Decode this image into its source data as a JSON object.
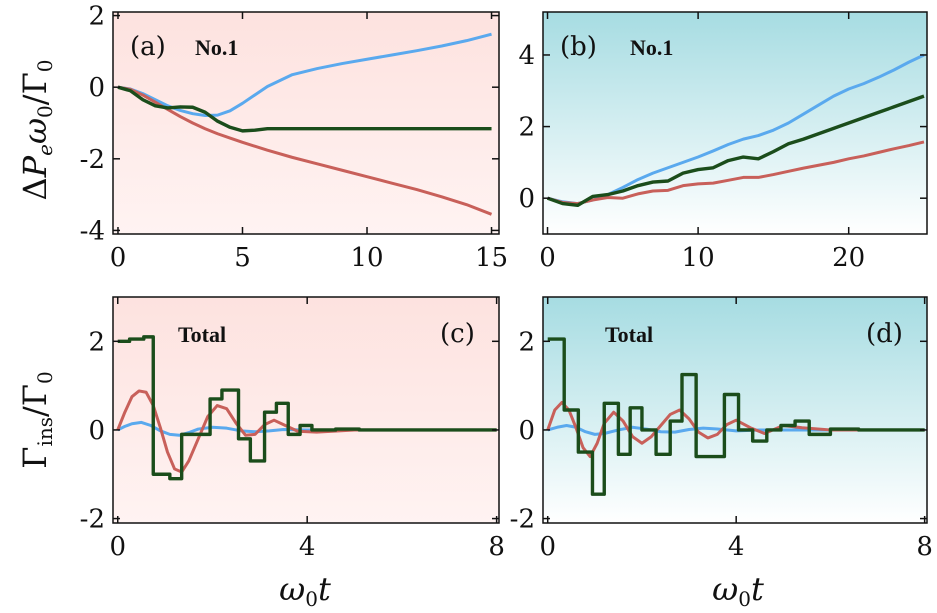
{
  "colors": {
    "blue": "#5aa9ee",
    "red": "#c8605a",
    "green": "#1b4d1b",
    "pink_bg": "#fde8e6",
    "cyan_top": "#a6dce2",
    "cyan_bottom": "#ffffff"
  },
  "ylabels": {
    "top": [
      "Δ",
      "P",
      "e",
      "ω",
      "0",
      "/Γ",
      "0"
    ],
    "bottom": [
      "Γ",
      "ins",
      "/Γ",
      "0"
    ]
  },
  "xlabel": [
    "ω",
    "0",
    "t"
  ],
  "chart_data": [
    {
      "type": "line",
      "panel_label": "(a)",
      "note": "No.1",
      "xlim": [
        -0.2,
        15.3
      ],
      "ylim": [
        -4.1,
        2.1
      ],
      "xticks": [
        "0",
        "5",
        "10",
        "15"
      ],
      "xtick_values": [
        0,
        5,
        10,
        15
      ],
      "yticks": [
        "-4",
        "-2",
        "0",
        "2"
      ],
      "ytick_values": [
        -4,
        -2,
        0,
        2
      ],
      "background": "pink",
      "series": [
        {
          "color": "blue",
          "x": [
            0,
            0.5,
            1,
            1.5,
            2,
            2.5,
            3,
            3.5,
            4,
            4.5,
            5,
            6,
            7,
            8,
            9,
            10,
            11,
            12,
            13,
            14,
            15
          ],
          "y": [
            0,
            -0.05,
            -0.18,
            -0.35,
            -0.52,
            -0.65,
            -0.74,
            -0.79,
            -0.78,
            -0.66,
            -0.45,
            0.02,
            0.35,
            0.52,
            0.66,
            0.78,
            0.9,
            1.02,
            1.15,
            1.3,
            1.48
          ]
        },
        {
          "color": "red",
          "x": [
            0,
            0.5,
            1,
            1.5,
            2,
            2.5,
            3,
            3.5,
            4,
            4.5,
            5,
            6,
            7,
            8,
            9,
            10,
            11,
            12,
            13,
            14,
            15
          ],
          "y": [
            0,
            -0.06,
            -0.22,
            -0.42,
            -0.62,
            -0.82,
            -1.0,
            -1.16,
            -1.3,
            -1.42,
            -1.54,
            -1.76,
            -1.96,
            -2.14,
            -2.32,
            -2.5,
            -2.68,
            -2.86,
            -3.06,
            -3.28,
            -3.55
          ]
        },
        {
          "color": "green",
          "x": [
            0,
            0.5,
            1,
            1.5,
            2,
            2.5,
            3,
            3.5,
            4,
            4.5,
            5,
            5.5,
            6,
            7,
            8,
            9,
            10,
            11,
            12,
            13,
            14,
            15
          ],
          "y": [
            0,
            -0.1,
            -0.35,
            -0.52,
            -0.58,
            -0.55,
            -0.56,
            -0.7,
            -0.95,
            -1.12,
            -1.22,
            -1.2,
            -1.16,
            -1.16,
            -1.16,
            -1.16,
            -1.16,
            -1.16,
            -1.16,
            -1.16,
            -1.16,
            -1.16
          ]
        }
      ]
    },
    {
      "type": "line",
      "panel_label": "(b)",
      "note": "No.1",
      "xlim": [
        -0.3,
        25.2
      ],
      "ylim": [
        -1.0,
        5.2
      ],
      "xticks": [
        "0",
        "10",
        "20"
      ],
      "xtick_values": [
        0,
        10,
        20
      ],
      "yticks": [
        "0",
        "2",
        "4"
      ],
      "ytick_values": [
        0,
        2,
        4
      ],
      "background": "cyan",
      "series": [
        {
          "color": "blue",
          "x": [
            0,
            1,
            2,
            3,
            4,
            5,
            6,
            7,
            8,
            9,
            10,
            11,
            12,
            13,
            14,
            15,
            16,
            17,
            18,
            19,
            20,
            21,
            22,
            23,
            24,
            25
          ],
          "y": [
            0,
            -0.1,
            -0.15,
            -0.05,
            0.1,
            0.3,
            0.52,
            0.7,
            0.85,
            1.0,
            1.15,
            1.32,
            1.5,
            1.65,
            1.75,
            1.9,
            2.1,
            2.35,
            2.6,
            2.85,
            3.05,
            3.2,
            3.38,
            3.58,
            3.8,
            4.0
          ]
        },
        {
          "color": "red",
          "x": [
            0,
            1,
            2,
            3,
            4,
            5,
            6,
            7,
            8,
            9,
            10,
            11,
            12,
            13,
            14,
            15,
            16,
            17,
            18,
            19,
            20,
            21,
            22,
            23,
            24,
            25
          ],
          "y": [
            0,
            -0.12,
            -0.15,
            -0.05,
            0.02,
            0.0,
            0.12,
            0.2,
            0.22,
            0.35,
            0.4,
            0.42,
            0.5,
            0.58,
            0.58,
            0.66,
            0.75,
            0.84,
            0.92,
            1.0,
            1.1,
            1.18,
            1.28,
            1.38,
            1.47,
            1.57
          ]
        },
        {
          "color": "green",
          "x": [
            0,
            1,
            2,
            3,
            4,
            5,
            6,
            7,
            8,
            9,
            10,
            11,
            12,
            13,
            14,
            15,
            16,
            17,
            18,
            19,
            20,
            21,
            22,
            23,
            24,
            25
          ],
          "y": [
            0,
            -0.15,
            -0.2,
            0.05,
            0.1,
            0.2,
            0.35,
            0.45,
            0.48,
            0.7,
            0.8,
            0.85,
            1.05,
            1.15,
            1.1,
            1.3,
            1.52,
            1.65,
            1.8,
            1.95,
            2.1,
            2.25,
            2.4,
            2.55,
            2.7,
            2.85
          ]
        }
      ]
    },
    {
      "type": "line",
      "panel_label": "(c)",
      "note": "Total",
      "xlim": [
        -0.1,
        8.05
      ],
      "ylim": [
        -2.1,
        3.0
      ],
      "xticks": [
        "0",
        "4",
        "8"
      ],
      "xtick_values": [
        0,
        4,
        8
      ],
      "yticks": [
        "-2",
        "0",
        "2"
      ],
      "ytick_values": [
        -2,
        0,
        2
      ],
      "background": "pink",
      "series": [
        {
          "color": "blue",
          "x": [
            0,
            0.15,
            0.3,
            0.5,
            0.7,
            0.9,
            1.1,
            1.3,
            1.5,
            1.7,
            2.0,
            2.3,
            2.6,
            2.9,
            3.2,
            3.5,
            4.0,
            5.0,
            6.0,
            8.0
          ],
          "y": [
            0,
            0.08,
            0.14,
            0.17,
            0.1,
            -0.02,
            -0.1,
            -0.12,
            -0.06,
            0.02,
            0.06,
            0.04,
            -0.02,
            -0.04,
            -0.02,
            0.01,
            0,
            0,
            0,
            0
          ]
        },
        {
          "color": "red",
          "x": [
            0,
            0.15,
            0.3,
            0.45,
            0.6,
            0.75,
            0.9,
            1.05,
            1.2,
            1.35,
            1.5,
            1.7,
            1.9,
            2.1,
            2.3,
            2.5,
            2.7,
            2.9,
            3.1,
            3.3,
            3.5,
            3.8,
            4.2,
            5.0,
            8.0
          ],
          "y": [
            0,
            0.4,
            0.75,
            0.88,
            0.85,
            0.55,
            0.05,
            -0.5,
            -0.88,
            -0.95,
            -0.7,
            -0.2,
            0.3,
            0.55,
            0.48,
            0.15,
            -0.12,
            -0.1,
            0.12,
            0.22,
            0.12,
            -0.03,
            -0.05,
            0,
            0
          ]
        },
        {
          "color": "green",
          "step": true,
          "x": [
            0,
            0.25,
            0.55,
            0.75,
            1.1,
            1.35,
            1.65,
            1.95,
            2.2,
            2.55,
            2.8,
            3.1,
            3.35,
            3.6,
            3.85,
            4.1,
            4.6,
            5.1,
            5.6,
            8.0
          ],
          "y": [
            2.0,
            2.05,
            2.1,
            -1.0,
            -1.1,
            -0.1,
            -0.1,
            0.7,
            0.9,
            -0.2,
            -0.7,
            0.4,
            0.6,
            -0.1,
            0.1,
            0,
            0.02,
            0,
            0,
            0
          ]
        }
      ]
    },
    {
      "type": "line",
      "panel_label": "(d)",
      "note": "Total",
      "xlim": [
        -0.1,
        8.05
      ],
      "ylim": [
        -2.1,
        3.0
      ],
      "xticks": [
        "0",
        "4",
        "8"
      ],
      "xtick_values": [
        0,
        4,
        8
      ],
      "yticks": [
        "-2",
        "0",
        "2"
      ],
      "ytick_values": [
        -2,
        0,
        2
      ],
      "background": "cyan",
      "series": [
        {
          "color": "blue",
          "x": [
            0,
            0.2,
            0.4,
            0.6,
            0.8,
            1.0,
            1.2,
            1.5,
            1.8,
            2.1,
            2.4,
            2.7,
            3.0,
            3.3,
            3.6,
            4.0,
            4.5,
            5.0,
            6.0,
            8.0
          ],
          "y": [
            0,
            0.06,
            0.1,
            0.06,
            -0.04,
            -0.1,
            -0.08,
            0,
            0.06,
            0.02,
            -0.04,
            -0.05,
            0.01,
            0.04,
            0.02,
            -0.02,
            0,
            0,
            0,
            0
          ]
        },
        {
          "color": "red",
          "x": [
            0,
            0.15,
            0.3,
            0.45,
            0.6,
            0.75,
            0.9,
            1.05,
            1.2,
            1.4,
            1.6,
            1.8,
            2.0,
            2.2,
            2.4,
            2.6,
            2.8,
            3.0,
            3.2,
            3.4,
            3.6,
            3.8,
            4.0,
            4.3,
            4.6,
            5.0,
            5.4,
            6.0,
            8.0
          ],
          "y": [
            0,
            0.45,
            0.62,
            0.45,
            0.05,
            -0.4,
            -0.6,
            -0.3,
            0.15,
            0.4,
            0.2,
            -0.15,
            -0.3,
            -0.15,
            0.1,
            0.35,
            0.45,
            0.25,
            -0.05,
            -0.18,
            -0.1,
            0.12,
            0.22,
            0.05,
            -0.08,
            0.1,
            0.05,
            0,
            0
          ]
        },
        {
          "color": "green",
          "step": true,
          "x": [
            0,
            0.35,
            0.65,
            0.95,
            1.2,
            1.5,
            1.75,
            2.0,
            2.3,
            2.6,
            2.85,
            3.15,
            3.5,
            3.75,
            4.05,
            4.35,
            4.65,
            4.95,
            5.25,
            5.55,
            6.0,
            6.6,
            8.0
          ],
          "y": [
            2.05,
            0.45,
            -0.5,
            -1.45,
            0.6,
            -0.55,
            0.5,
            0,
            -0.55,
            0.2,
            1.25,
            -0.6,
            -0.6,
            0.8,
            0,
            -0.25,
            0,
            0.1,
            0.2,
            -0.1,
            0.02,
            0,
            0
          ]
        }
      ]
    }
  ]
}
